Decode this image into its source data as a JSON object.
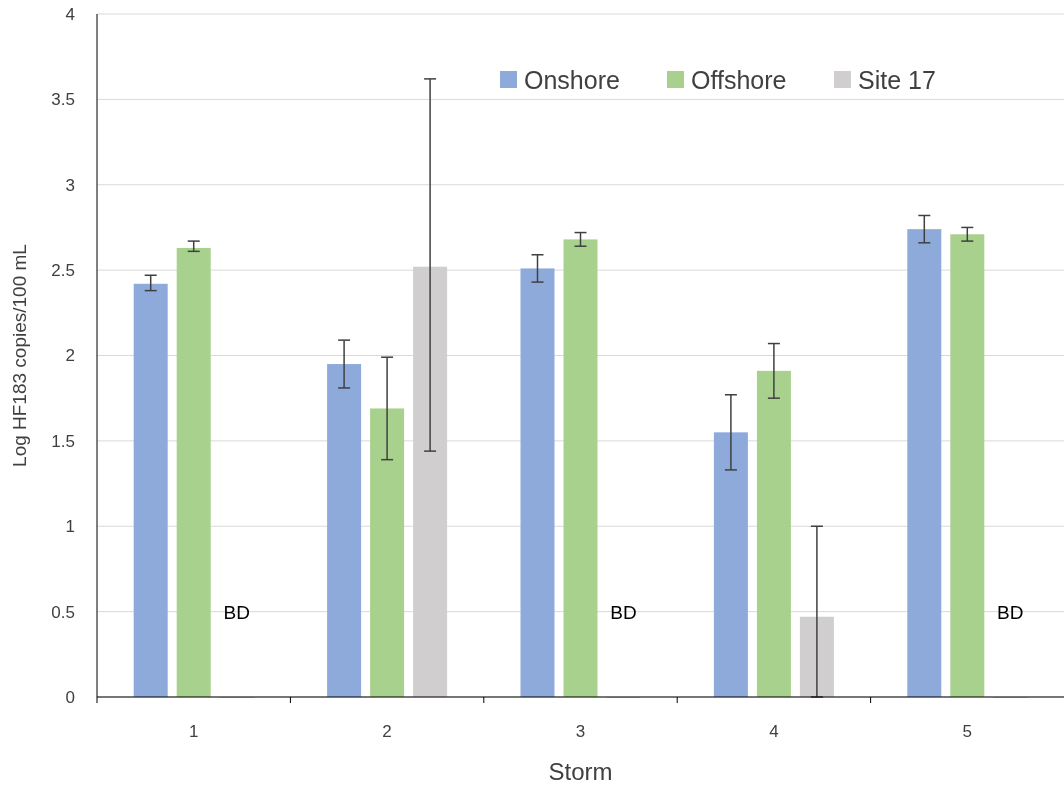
{
  "chart_data": {
    "type": "bar",
    "xlabel": "Storm",
    "ylabel": "Log HF183 copies/100 mL",
    "categories": [
      "1",
      "2",
      "3",
      "4",
      "5"
    ],
    "ylim": [
      0,
      4
    ],
    "yticks": [
      0,
      0.5,
      1,
      1.5,
      2,
      2.5,
      3,
      3.5,
      4
    ],
    "grid": "y",
    "legend": "top right",
    "series": [
      {
        "name": "Onshore",
        "color": "#8eaadb",
        "values": [
          2.42,
          1.95,
          2.51,
          1.55,
          2.74
        ],
        "errors": [
          [
            2.38,
            2.47
          ],
          [
            1.81,
            2.09
          ],
          [
            2.43,
            2.59
          ],
          [
            1.33,
            1.77
          ],
          [
            2.66,
            2.82
          ]
        ]
      },
      {
        "name": "Offshore",
        "color": "#a9d18e",
        "values": [
          2.63,
          1.69,
          2.68,
          1.91,
          2.71
        ],
        "errors": [
          [
            2.61,
            2.67
          ],
          [
            1.39,
            1.99
          ],
          [
            2.64,
            2.72
          ],
          [
            1.75,
            2.07
          ],
          [
            2.67,
            2.75
          ]
        ]
      },
      {
        "name": "Site 17",
        "color": "#d0cece",
        "values": [
          0,
          2.52,
          0,
          0.47,
          0
        ],
        "errors": [
          null,
          [
            1.44,
            3.62
          ],
          null,
          [
            0,
            1.0
          ],
          null
        ]
      }
    ],
    "annotations": [
      "BD",
      "BD",
      "BD"
    ]
  }
}
